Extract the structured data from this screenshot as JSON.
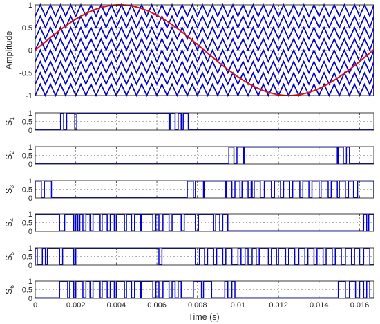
{
  "chart_data": [
    {
      "id": "carriers",
      "type": "line",
      "ylabel": "Amplitude",
      "xlim": [
        0,
        0.0167
      ],
      "ylim": [
        -1,
        1
      ],
      "yticks": [
        -1,
        -0.5,
        0,
        0.5,
        1
      ],
      "ytick_labels": [
        "-1",
        "-0.5",
        "0",
        "0.5",
        "1"
      ],
      "grid": true,
      "series": [
        {
          "kind": "carriers",
          "color": "#0000cc",
          "count": 8,
          "period_s": 0.0005,
          "bands": [
            [
              -1,
              -0.75
            ],
            [
              -0.75,
              -0.5
            ],
            [
              -0.5,
              -0.25
            ],
            [
              -0.25,
              0
            ],
            [
              0,
              0.25
            ],
            [
              0.25,
              0.5
            ],
            [
              0.5,
              0.75
            ],
            [
              0.75,
              1
            ]
          ]
        },
        {
          "kind": "reference",
          "color": "#dd1111",
          "amplitude": 1,
          "frequency_hz": 60
        }
      ]
    },
    {
      "id": "S1",
      "type": "line",
      "ylabel": "S",
      "ylabel_sub": "1",
      "ylim": [
        0,
        1
      ],
      "yticks": [
        0,
        0.5,
        1
      ],
      "ytick_labels": [
        "0",
        "0.5",
        "1"
      ],
      "color": "#0000cc",
      "pulses": [
        [
          0.00125,
          0.0014
        ],
        [
          0.00155,
          0.00195
        ],
        [
          0.00205,
          0.0066
        ],
        [
          0.00665,
          0.0069
        ],
        [
          0.00705,
          0.0072
        ],
        [
          0.0073,
          0.00755
        ]
      ]
    },
    {
      "id": "S2",
      "type": "line",
      "ylabel": "S",
      "ylabel_sub": "2",
      "ylim": [
        0,
        1
      ],
      "yticks": [
        0,
        0.5,
        1
      ],
      "ytick_labels": [
        "0",
        "0.5",
        "1"
      ],
      "color": "#0000cc",
      "pulses": [
        [
          0.00955,
          0.0098
        ],
        [
          0.00995,
          0.01025
        ],
        [
          0.0103,
          0.0149
        ],
        [
          0.01495,
          0.0152
        ],
        [
          0.01535,
          0.0155
        ]
      ]
    },
    {
      "id": "S3",
      "type": "line",
      "ylabel": "S",
      "ylabel_sub": "3",
      "ylim": [
        0,
        1
      ],
      "yticks": [
        0,
        0.5,
        1
      ],
      "ytick_labels": [
        "0",
        "0.5",
        "1"
      ],
      "color": "#0000cc",
      "pulses": [
        [
          0,
          0.0003
        ],
        [
          0.00045,
          0.0008
        ],
        [
          0.0075,
          0.0078
        ],
        [
          0.0079,
          0.0083
        ],
        [
          0.00835,
          0.0094
        ],
        [
          0.00945,
          0.0097
        ],
        [
          0.00985,
          0.0101
        ],
        [
          0.0102,
          0.0105
        ],
        [
          0.01065,
          0.0107
        ],
        [
          0.0108,
          0.0111
        ],
        [
          0.0113,
          0.01165
        ],
        [
          0.0118,
          0.0121
        ],
        [
          0.01225,
          0.01255
        ],
        [
          0.0127,
          0.01305
        ],
        [
          0.0132,
          0.0135
        ],
        [
          0.01365,
          0.014
        ],
        [
          0.0141,
          0.01445
        ],
        [
          0.0146,
          0.0149
        ],
        [
          0.015,
          0.0153
        ],
        [
          0.01545,
          0.0157
        ],
        [
          0.0159,
          0.0167
        ]
      ]
    },
    {
      "id": "S4",
      "type": "line",
      "ylabel": "S",
      "ylabel_sub": "4",
      "ylim": [
        0,
        1
      ],
      "yticks": [
        0,
        0.5,
        1
      ],
      "ytick_labels": [
        "0",
        "0.5",
        "1"
      ],
      "color": "#0000cc",
      "pulses": [
        [
          0,
          0.0012
        ],
        [
          0.00145,
          0.0019
        ],
        [
          0.002,
          0.0021
        ],
        [
          0.0022,
          0.00235
        ],
        [
          0.0025,
          0.0027
        ],
        [
          0.00285,
          0.0032
        ],
        [
          0.0033,
          0.00355
        ],
        [
          0.0037,
          0.0039
        ],
        [
          0.004,
          0.0044
        ],
        [
          0.0045,
          0.00475
        ],
        [
          0.0049,
          0.0052
        ],
        [
          0.00525,
          0.0058
        ],
        [
          0.00595,
          0.0061
        ],
        [
          0.0063,
          0.0066
        ],
        [
          0.00675,
          0.0072
        ],
        [
          0.00735,
          0.0079
        ],
        [
          0.00805,
          0.0088
        ],
        [
          0.0089,
          0.0091
        ],
        [
          0.00925,
          0.0095
        ],
        [
          0.0162,
          0.01635
        ],
        [
          0.01645,
          0.0167
        ]
      ]
    },
    {
      "id": "S5",
      "type": "line",
      "ylabel": "S",
      "ylabel_sub": "5",
      "ylim": [
        0,
        1
      ],
      "yticks": [
        0,
        0.5,
        1
      ],
      "ytick_labels": [
        "0",
        "0.5",
        "1"
      ],
      "color": "#0000cc",
      "pulses": [
        [
          0,
          0.0001
        ],
        [
          0.00035,
          0.0005
        ],
        [
          0.0006,
          0.0012
        ],
        [
          0.00135,
          0.0019
        ],
        [
          0.002,
          0.0061
        ],
        [
          0.00625,
          0.0079
        ],
        [
          0.0081,
          0.00835
        ],
        [
          0.0085,
          0.0088
        ],
        [
          0.00895,
          0.00925
        ],
        [
          0.0094,
          0.0097
        ],
        [
          0.01,
          0.01015
        ],
        [
          0.01035,
          0.0105
        ],
        [
          0.0107,
          0.0109
        ],
        [
          0.01105,
          0.0115
        ],
        [
          0.01165,
          0.0119
        ],
        [
          0.012,
          0.01235
        ],
        [
          0.0125,
          0.0128
        ],
        [
          0.013,
          0.0133
        ],
        [
          0.01345,
          0.01375
        ],
        [
          0.0139,
          0.0142
        ],
        [
          0.01435,
          0.01465
        ],
        [
          0.0148,
          0.0151
        ],
        [
          0.0153,
          0.0156
        ],
        [
          0.01575,
          0.016
        ],
        [
          0.0162,
          0.0165
        ]
      ]
    },
    {
      "id": "S6",
      "type": "line",
      "ylabel": "S",
      "ylabel_sub": "6",
      "ylim": [
        0,
        1
      ],
      "yticks": [
        0,
        0.5,
        1
      ],
      "ytick_labels": [
        "0",
        "0.5",
        "1"
      ],
      "xlabel": "Time (s)",
      "xticks": [
        0,
        0.002,
        0.004,
        0.006,
        0.008,
        0.01,
        0.012,
        0.014,
        0.016
      ],
      "xtick_labels": [
        "0",
        "0.002",
        "0.004",
        "0.006",
        "0.008",
        "0.01",
        "0.012",
        "0.014",
        "0.016"
      ],
      "color": "#0000cc",
      "pulses": [
        [
          0.0012,
          0.0016
        ],
        [
          0.0017,
          0.0019
        ],
        [
          0.002,
          0.00235
        ],
        [
          0.0025,
          0.0027
        ],
        [
          0.00285,
          0.0032
        ],
        [
          0.0033,
          0.00355
        ],
        [
          0.0037,
          0.0039
        ],
        [
          0.004,
          0.0044
        ],
        [
          0.0045,
          0.00475
        ],
        [
          0.0049,
          0.0052
        ],
        [
          0.00525,
          0.0058
        ],
        [
          0.00595,
          0.0061
        ],
        [
          0.0063,
          0.0066
        ],
        [
          0.00675,
          0.0069
        ],
        [
          0.00705,
          0.0072
        ],
        [
          0.0078,
          0.0082
        ],
        [
          0.0083,
          0.0087
        ],
        [
          0.00935,
          0.0095
        ],
        [
          0.0097,
          0.00985
        ],
        [
          0.01495,
          0.0153
        ],
        [
          0.0155,
          0.0158
        ],
        [
          0.016,
          0.0162
        ],
        [
          0.01635,
          0.0165
        ]
      ]
    }
  ]
}
